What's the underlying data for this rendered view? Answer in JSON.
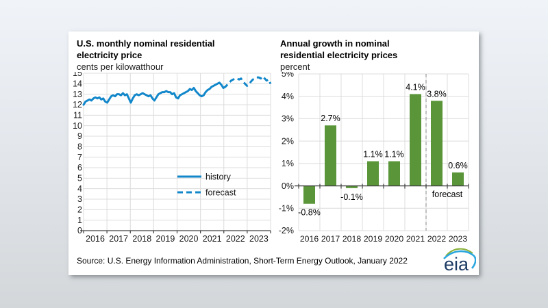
{
  "window": {
    "background_top": "#f0f4f9",
    "background_bottom": "#d3d7da",
    "panel_bg": "#ffffff"
  },
  "chart_data": [
    {
      "type": "line",
      "title_lines": [
        "U.S. monthly nominal residential",
        "electricity price"
      ],
      "ylabel": "cents per kilowatthour",
      "ylim": [
        0,
        15
      ],
      "ytick_step": 1,
      "years": [
        "2016",
        "2017",
        "2018",
        "2019",
        "2020",
        "2021",
        "2022",
        "2023"
      ],
      "line_color": "#1287ca",
      "grid": true,
      "legend": [
        "history",
        "forecast"
      ],
      "series": [
        {
          "name": "history",
          "style": "solid",
          "values": [
            12.0,
            12.3,
            12.4,
            12.5,
            12.4,
            12.6,
            12.7,
            12.6,
            12.7,
            12.5,
            12.6,
            12.3,
            12.2,
            12.5,
            12.8,
            12.9,
            12.8,
            13.0,
            13.0,
            12.9,
            13.1,
            12.9,
            13.0,
            12.6,
            12.2,
            12.6,
            12.9,
            13.0,
            12.9,
            13.0,
            13.1,
            13.0,
            12.9,
            12.8,
            12.9,
            12.6,
            12.4,
            12.7,
            13.0,
            13.1,
            13.2,
            13.2,
            13.3,
            13.2,
            13.2,
            13.0,
            13.1,
            12.7,
            12.6,
            12.9,
            13.0,
            13.1,
            13.2,
            13.3,
            13.5,
            13.4,
            13.6,
            13.3,
            13.1,
            12.9,
            12.8,
            12.9,
            13.2,
            13.4,
            13.5,
            13.7,
            13.8,
            13.9,
            14.0,
            14.1,
            13.9,
            13.6
          ]
        },
        {
          "name": "forecast",
          "style": "dashed",
          "values": [
            13.7,
            13.9,
            14.1,
            14.3,
            14.4,
            14.5,
            14.5,
            14.4,
            14.5,
            14.2,
            14.0,
            13.8,
            13.9,
            14.2,
            14.4,
            14.5,
            14.6,
            14.6,
            14.5,
            14.7,
            14.5,
            14.3,
            14.4,
            14.0
          ]
        }
      ]
    },
    {
      "type": "bar",
      "title_lines": [
        "Annual growth in nominal",
        "residential electricity prices"
      ],
      "ylabel": "percent",
      "ylim": [
        -2,
        5
      ],
      "ytick_labels": [
        "-2%",
        "-1%",
        "0%",
        "1%",
        "2%",
        "3%",
        "4%",
        "5%"
      ],
      "categories": [
        "2016",
        "2017",
        "2018",
        "2019",
        "2020",
        "2021",
        "2022",
        "2023"
      ],
      "values": [
        -0.8,
        2.7,
        -0.1,
        1.1,
        1.1,
        4.1,
        3.8,
        0.6
      ],
      "value_labels": [
        "-0.8%",
        "2.7%",
        "-0.1%",
        "1.1%",
        "1.1%",
        "4.1%",
        "3.8%",
        "0.6%"
      ],
      "bar_color": "#5a9639",
      "forecast_label": "forecast",
      "forecast_start_index": 6,
      "grid": true
    }
  ],
  "source": {
    "text": "Source: U.S. Energy Information Administration, Short-Term Energy Outlook, January 2022"
  },
  "logo": {
    "text": "eia",
    "navy": "#1c3a63",
    "green": "#8db33f",
    "blue": "#2ba7df"
  }
}
